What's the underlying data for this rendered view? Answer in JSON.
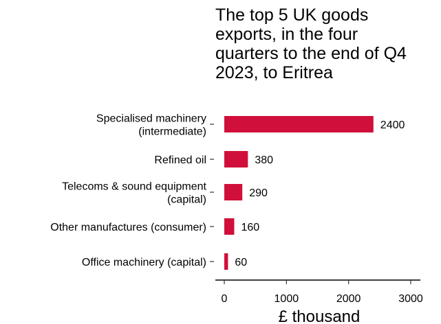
{
  "chart_data": {
    "type": "bar",
    "orientation": "horizontal",
    "title": "The top 5 UK goods exports, in the four quarters to the end of Q4 2023, to Eritrea",
    "title_lines": [
      "The top 5 UK goods",
      "exports, in the four",
      "quarters to the end of Q4",
      "2023, to Eritrea"
    ],
    "categories": [
      [
        "Specialised machinery",
        "(intermediate)"
      ],
      [
        "Refined oil"
      ],
      [
        "Telecoms & sound equipment",
        "(capital)"
      ],
      [
        "Other manufactures (consumer)"
      ],
      [
        "Office machinery (capital)"
      ]
    ],
    "values": [
      2400,
      380,
      290,
      160,
      60
    ],
    "value_labels": [
      "2400",
      "380",
      "290",
      "160",
      "60"
    ],
    "xlabel": "£ thousand",
    "ylabel": "",
    "xlim": [
      0,
      3000
    ],
    "xticks": [
      0,
      1000,
      2000,
      3000
    ],
    "grid": false,
    "bar_color": "#d0103a"
  }
}
